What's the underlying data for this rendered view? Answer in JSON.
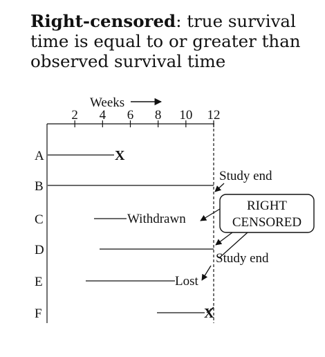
{
  "definition": {
    "term": "Right-censored",
    "text": ": true survival time is equal to or greater than observed survival time"
  },
  "axis": {
    "label": "Weeks",
    "ticks": [
      "2",
      "4",
      "6",
      "8",
      "10",
      "12"
    ]
  },
  "subjects": [
    "A",
    "B",
    "C",
    "D",
    "E",
    "F"
  ],
  "annotations": {
    "event_mark": "X",
    "study_end_1": "Study end",
    "study_end_2": "Study end",
    "withdrawn": "Withdrawn",
    "lost": "Lost",
    "box_line1": "RIGHT",
    "box_line2": "CENSORED"
  },
  "chart_data": {
    "type": "timeline",
    "xlabel": "Weeks",
    "xlim": [
      0,
      12
    ],
    "rows": [
      {
        "subject": "A",
        "start": 0,
        "end": 5,
        "outcome": "X"
      },
      {
        "subject": "B",
        "start": 0,
        "end": 12,
        "outcome": "Study end"
      },
      {
        "subject": "C",
        "start": 3.2,
        "end": 5.5,
        "outcome": "Withdrawn"
      },
      {
        "subject": "D",
        "start": 3.7,
        "end": 12,
        "outcome": "Study end"
      },
      {
        "subject": "E",
        "start": 2.7,
        "end": 8.7,
        "outcome": "Lost"
      },
      {
        "subject": "F",
        "start": 7.8,
        "end": 12,
        "outcome": "X"
      }
    ]
  }
}
